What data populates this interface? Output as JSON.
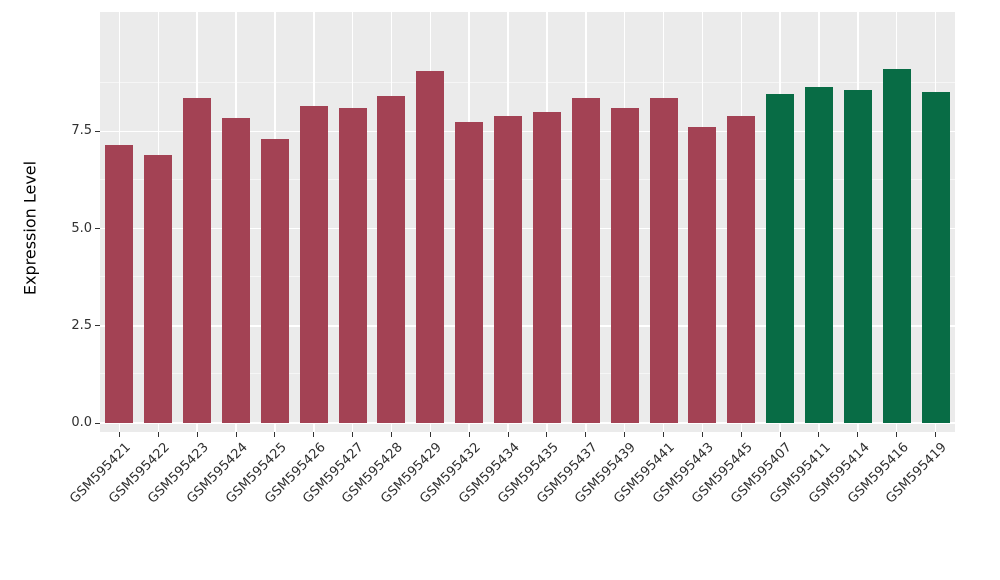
{
  "chart_data": {
    "type": "bar",
    "title": "",
    "xlabel": "",
    "ylabel": "Expression Level",
    "categories": [
      "GSM595421",
      "GSM595422",
      "GSM595423",
      "GSM595424",
      "GSM595425",
      "GSM595426",
      "GSM595427",
      "GSM595428",
      "GSM595429",
      "GSM595432",
      "GSM595434",
      "GSM595435",
      "GSM595437",
      "GSM595439",
      "GSM595441",
      "GSM595443",
      "GSM595445",
      "GSM595407",
      "GSM595411",
      "GSM595414",
      "GSM595416",
      "GSM595419"
    ],
    "values": [
      7.15,
      6.9,
      8.35,
      7.85,
      7.3,
      8.15,
      8.1,
      8.4,
      9.05,
      7.75,
      7.9,
      8.0,
      8.35,
      8.1,
      8.35,
      7.6,
      7.9,
      8.45,
      8.65,
      8.55,
      9.1,
      8.5
    ],
    "groups": [
      "group1",
      "group1",
      "group1",
      "group1",
      "group1",
      "group1",
      "group1",
      "group1",
      "group1",
      "group1",
      "group1",
      "group1",
      "group1",
      "group1",
      "group1",
      "group1",
      "group1",
      "group2",
      "group2",
      "group2",
      "group2",
      "group2"
    ],
    "group_colors": {
      "group1": "#A34254",
      "group2": "#086C45"
    },
    "yticks": [
      0,
      2.5,
      5,
      7.5
    ],
    "ytick_labels": [
      "0.0",
      "2.5",
      "5.0",
      "7.5"
    ],
    "yticks_minor": [
      1.25,
      3.75,
      6.25,
      8.75
    ],
    "ylim": [
      0,
      10.56
    ],
    "grid": true,
    "legend": "none",
    "colors": {
      "page_background": "#FFFFFF",
      "panel_background": "#EBEBEB",
      "grid_line": "#FFFFFF",
      "tick_mark": "#333333",
      "tick_text": "#303030",
      "axis_title_text": "#000000"
    }
  }
}
